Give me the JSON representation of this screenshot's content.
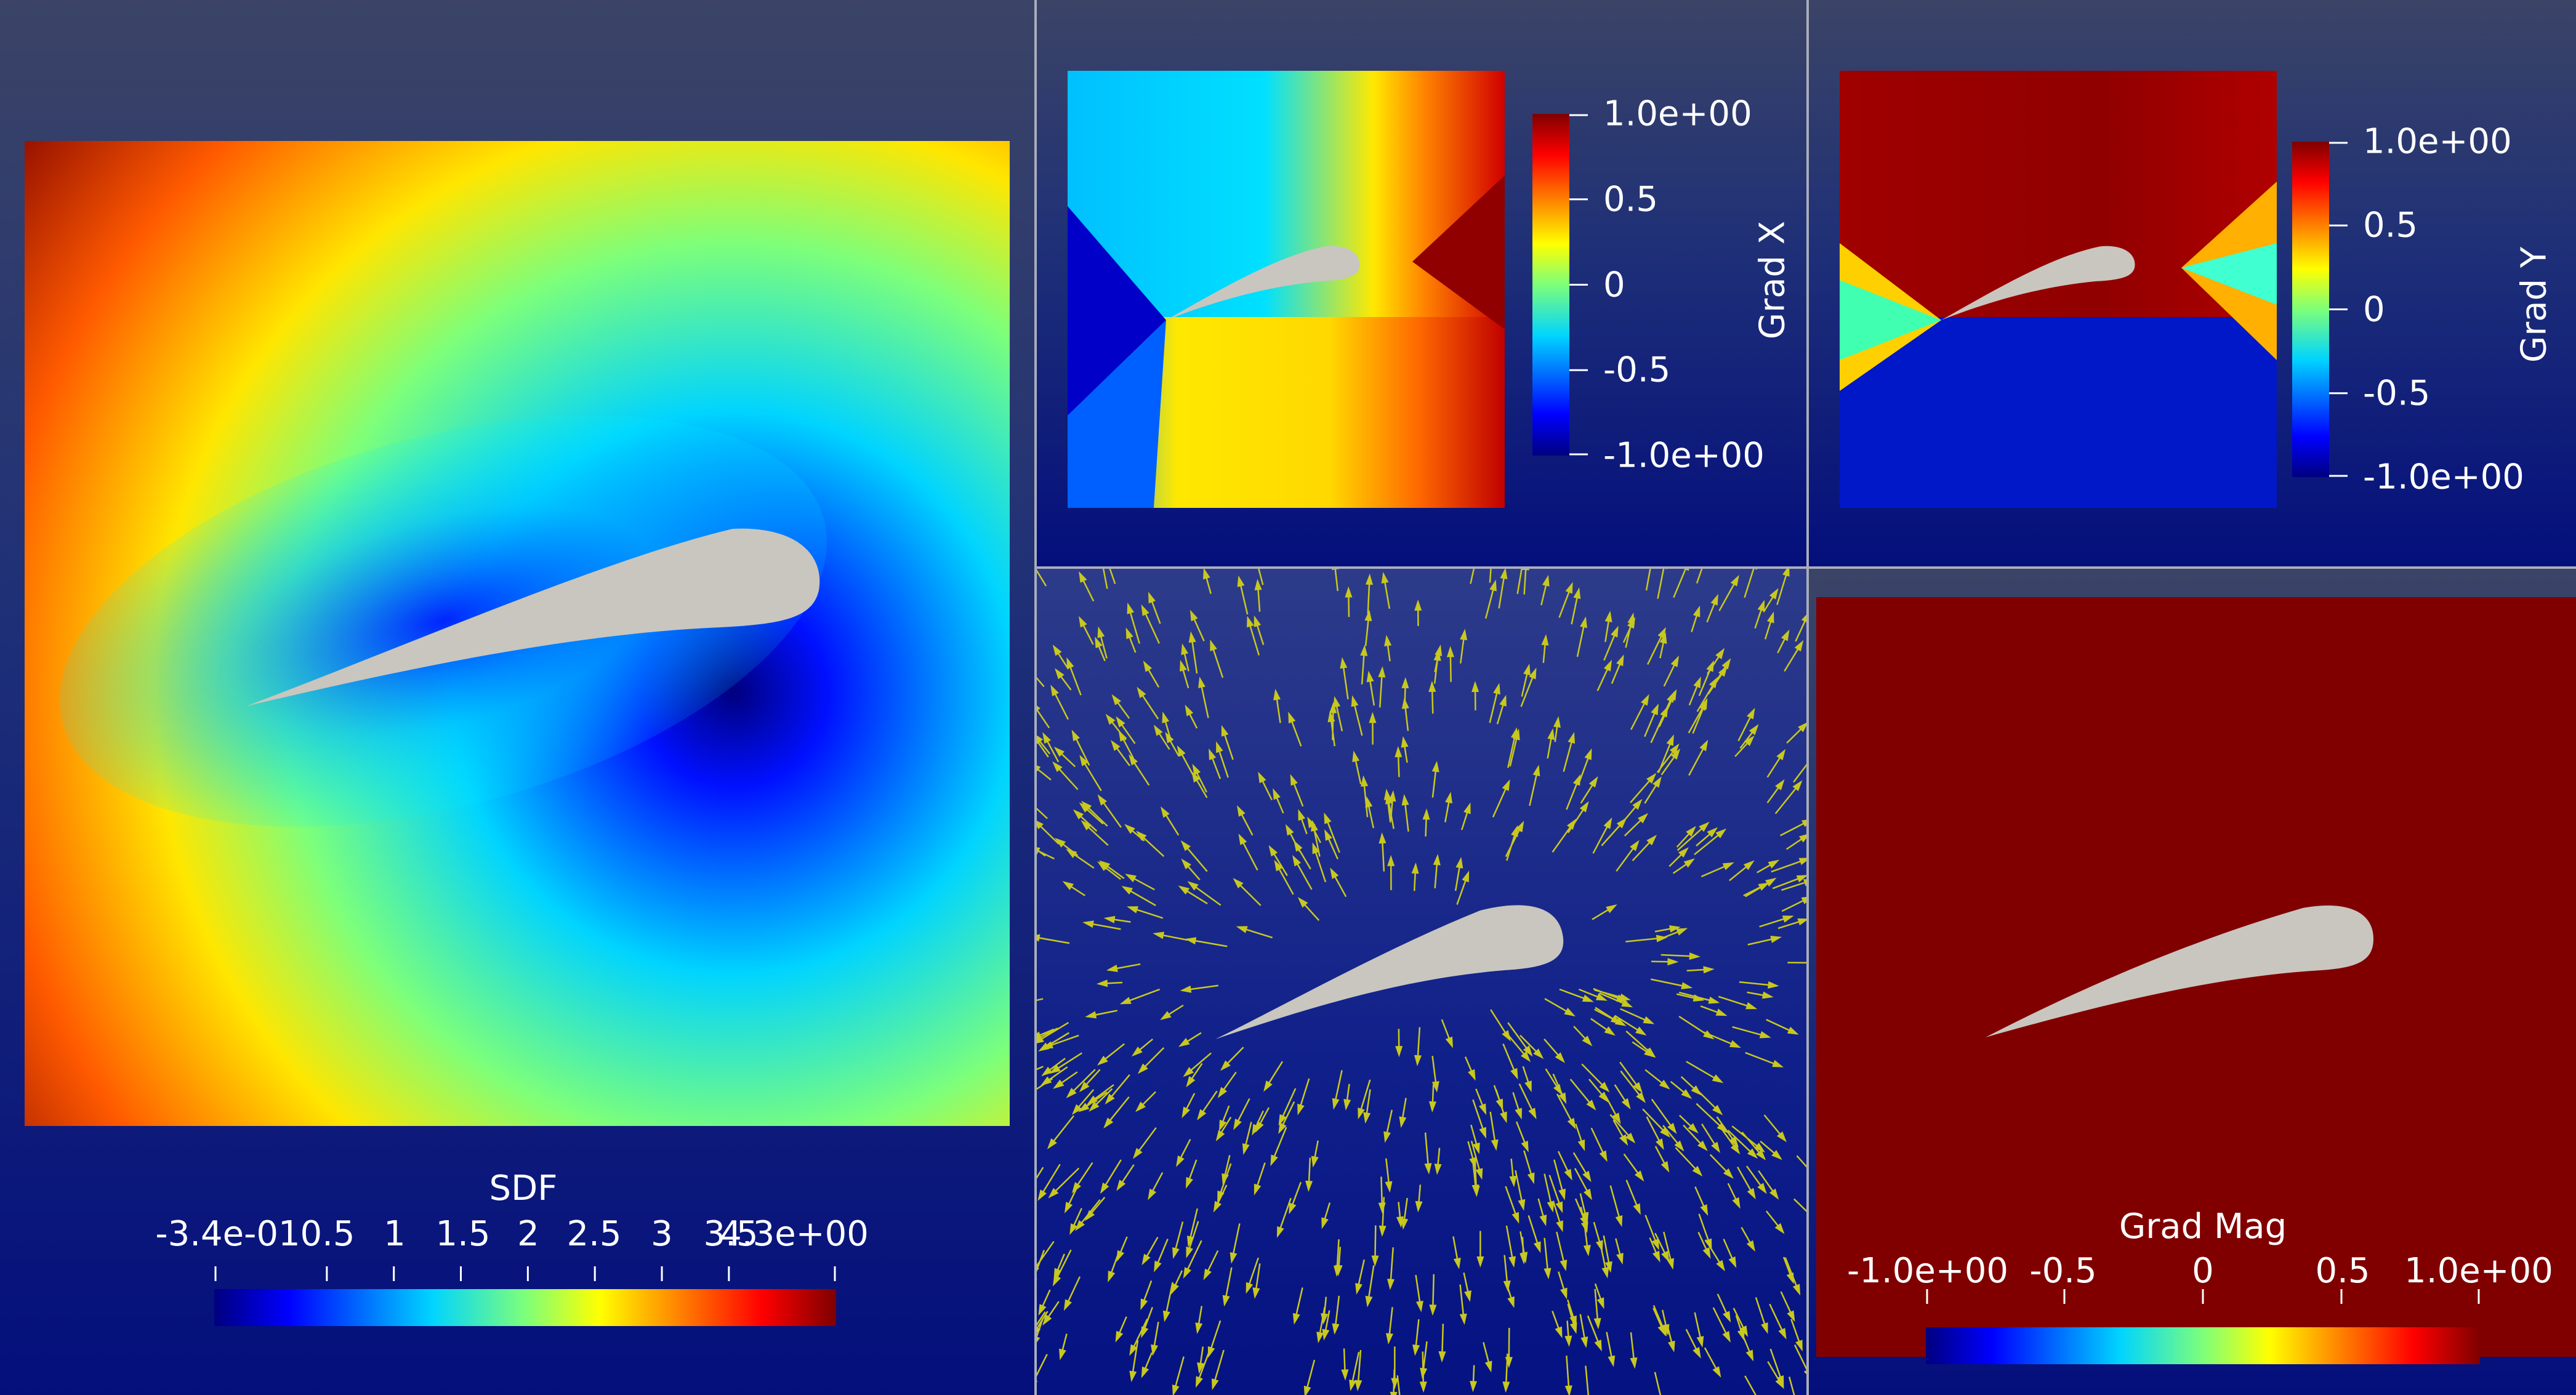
{
  "colors": {
    "background_top": "#3b4466",
    "background_bottom": "#040f7c",
    "airfoil": "#c8c6bf",
    "arrow": "#c8c81e",
    "divider": "#a9adbb",
    "text": "#ffffff"
  },
  "colormap": "jet",
  "views": {
    "sdf": {
      "colorbar_title": "SDF",
      "colorbar_orientation": "horizontal",
      "range": [
        -0.34,
        4.3
      ],
      "ticks": [
        {
          "value": -0.34,
          "label": "-3.4e-01"
        },
        {
          "value": 0.5,
          "label": "0.5"
        },
        {
          "value": 1.0,
          "label": "1"
        },
        {
          "value": 1.5,
          "label": "1.5"
        },
        {
          "value": 2.0,
          "label": "2"
        },
        {
          "value": 2.5,
          "label": "2.5"
        },
        {
          "value": 3.0,
          "label": "3"
        },
        {
          "value": 3.5,
          "label": "3.5"
        },
        {
          "value": 4.3,
          "label": "4.3e+00"
        }
      ]
    },
    "grad_x": {
      "colorbar_title": "Grad X",
      "colorbar_orientation": "vertical",
      "range": [
        -1.0,
        1.0
      ],
      "ticks": [
        {
          "value": 1.0,
          "label": "1.0e+00"
        },
        {
          "value": 0.5,
          "label": "0.5"
        },
        {
          "value": 0,
          "label": "0"
        },
        {
          "value": -0.5,
          "label": "-0.5"
        },
        {
          "value": -1.0,
          "label": "-1.0e+00"
        }
      ]
    },
    "grad_y": {
      "colorbar_title": "Grad Y",
      "colorbar_orientation": "vertical",
      "range": [
        -1.0,
        1.0
      ],
      "ticks": [
        {
          "value": 1.0,
          "label": "1.0e+00"
        },
        {
          "value": 0.5,
          "label": "0.5"
        },
        {
          "value": 0,
          "label": "0"
        },
        {
          "value": -0.5,
          "label": "-0.5"
        },
        {
          "value": -1.0,
          "label": "-1.0e+00"
        }
      ]
    },
    "grad_vectors": {
      "glyph": "arrow"
    },
    "grad_mag": {
      "colorbar_title": "Grad Mag",
      "colorbar_orientation": "horizontal",
      "range": [
        -1.0,
        1.0
      ],
      "field_value": 1.0,
      "ticks": [
        {
          "value": -1.0,
          "label": "-1.0e+00"
        },
        {
          "value": -0.5,
          "label": "-0.5"
        },
        {
          "value": 0,
          "label": "0"
        },
        {
          "value": 0.5,
          "label": "0.5"
        },
        {
          "value": 1.0,
          "label": "1.0e+00"
        }
      ]
    }
  }
}
